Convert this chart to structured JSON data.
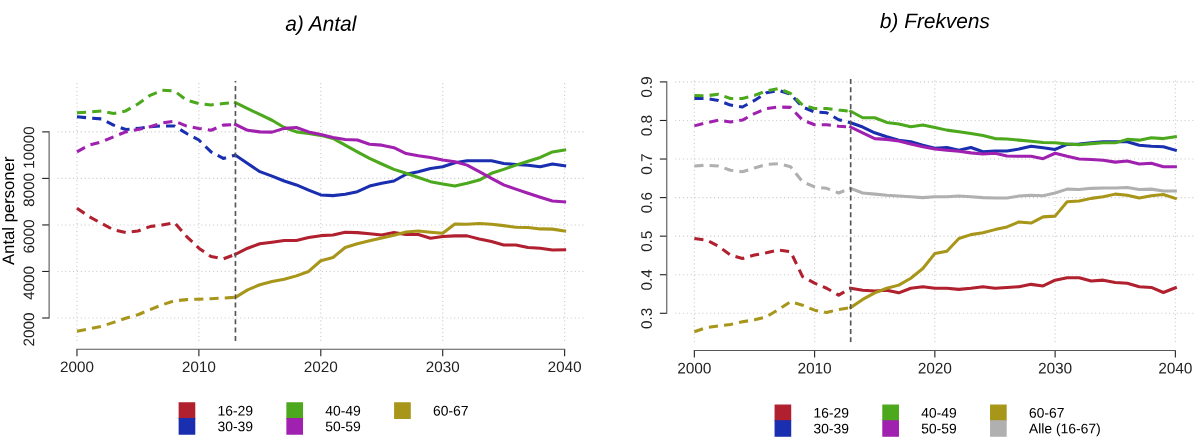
{
  "chart_data": [
    {
      "type": "line",
      "title": "a) Antal",
      "ylabel": "Antal personer",
      "xlim": [
        1998.4,
        2041.6
      ],
      "ylim": [
        1016,
        12200
      ],
      "xticks": [
        2000,
        2010,
        2020,
        2030,
        2040
      ],
      "yticks": [
        2000,
        4000,
        6000,
        8000,
        10000
      ],
      "grid": true,
      "legend": "bottom",
      "marker": "none",
      "ref_lines": [
        {
          "axis": "x",
          "value": 2013,
          "color": "#555555",
          "line_style": "dashed"
        }
      ],
      "series": [
        {
          "color": "#b0202e",
          "line_style": "dashed",
          "x": [
            2000,
            2001,
            2002,
            2003,
            2004,
            2005,
            2006,
            2007,
            2008,
            2009,
            2010,
            2011,
            2012,
            2013
          ],
          "values": [
            6720,
            6360,
            6070,
            5790,
            5670,
            5740,
            5930,
            6000,
            6100,
            5500,
            5000,
            4640,
            4540,
            4740
          ]
        },
        {
          "name": "16-29",
          "color": "#b0202e",
          "line_style": "solid",
          "x": [
            2013,
            2014,
            2015,
            2016,
            2017,
            2018,
            2019,
            2020,
            2021,
            2022,
            2023,
            2024,
            2025,
            2026,
            2027,
            2028,
            2029,
            2030,
            2031,
            2032,
            2033,
            2034,
            2035,
            2036,
            2037,
            2038,
            2039,
            2040
          ],
          "values": [
            4740,
            5000,
            5190,
            5260,
            5330,
            5330,
            5460,
            5540,
            5570,
            5690,
            5670,
            5620,
            5570,
            5670,
            5590,
            5590,
            5430,
            5500,
            5530,
            5530,
            5400,
            5290,
            5140,
            5140,
            5030,
            5000,
            4920,
            4930
          ]
        },
        {
          "color": "#1a2fb0",
          "line_style": "dashed",
          "x": [
            2000,
            2001,
            2002,
            2003,
            2004,
            2005,
            2006,
            2007,
            2008,
            2009,
            2010,
            2011,
            2012,
            2013
          ],
          "values": [
            10650,
            10600,
            10560,
            10290,
            10100,
            10150,
            10220,
            10260,
            10250,
            9930,
            9650,
            9140,
            8860,
            9000
          ]
        },
        {
          "name": "30-39",
          "color": "#1a2fb0",
          "line_style": "solid",
          "x": [
            2013,
            2014,
            2015,
            2016,
            2017,
            2018,
            2019,
            2020,
            2021,
            2022,
            2023,
            2024,
            2025,
            2026,
            2027,
            2028,
            2029,
            2030,
            2031,
            2032,
            2033,
            2034,
            2035,
            2036,
            2037,
            2038,
            2039,
            2040
          ],
          "values": [
            9000,
            8640,
            8290,
            8100,
            7890,
            7720,
            7500,
            7290,
            7260,
            7320,
            7430,
            7670,
            7790,
            7890,
            8180,
            8290,
            8430,
            8500,
            8670,
            8760,
            8760,
            8760,
            8640,
            8600,
            8570,
            8500,
            8620,
            8540
          ]
        },
        {
          "color": "#4ca81c",
          "line_style": "dashed",
          "x": [
            2000,
            2001,
            2002,
            2003,
            2004,
            2005,
            2006,
            2007,
            2008,
            2009,
            2010,
            2011,
            2012,
            2013
          ],
          "values": [
            10820,
            10850,
            10900,
            10790,
            10900,
            11200,
            11570,
            11790,
            11760,
            11360,
            11220,
            11160,
            11220,
            11260
          ]
        },
        {
          "name": "40-49",
          "color": "#4ca81c",
          "line_style": "solid",
          "x": [
            2013,
            2014,
            2015,
            2016,
            2017,
            2018,
            2019,
            2020,
            2021,
            2022,
            2023,
            2024,
            2025,
            2026,
            2027,
            2028,
            2029,
            2030,
            2031,
            2032,
            2033,
            2034,
            2035,
            2036,
            2037,
            2038,
            2039,
            2040
          ],
          "values": [
            11260,
            11000,
            10750,
            10500,
            10190,
            10000,
            9930,
            9850,
            9720,
            9430,
            9140,
            8860,
            8620,
            8390,
            8220,
            8040,
            7860,
            7760,
            7670,
            7790,
            7930,
            8220,
            8390,
            8570,
            8740,
            8900,
            9140,
            9220
          ]
        },
        {
          "color": "#a020b0",
          "line_style": "dashed",
          "x": [
            2000,
            2001,
            2002,
            2003,
            2004,
            2005,
            2006,
            2007,
            2008,
            2009,
            2010,
            2011,
            2012,
            2013
          ],
          "values": [
            9140,
            9430,
            9570,
            9790,
            10000,
            10100,
            10220,
            10390,
            10460,
            10250,
            10150,
            10070,
            10290,
            10320
          ]
        },
        {
          "name": "50-59",
          "color": "#a020b0",
          "line_style": "solid",
          "x": [
            2013,
            2014,
            2015,
            2016,
            2017,
            2018,
            2019,
            2020,
            2021,
            2022,
            2023,
            2024,
            2025,
            2026,
            2027,
            2028,
            2029,
            2030,
            2031,
            2032,
            2033,
            2034,
            2035,
            2036,
            2037,
            2038,
            2039,
            2040
          ],
          "values": [
            10320,
            10070,
            10000,
            9990,
            10150,
            10190,
            10000,
            9890,
            9760,
            9670,
            9650,
            9470,
            9430,
            9320,
            9070,
            8970,
            8900,
            8790,
            8720,
            8570,
            8290,
            8000,
            7720,
            7540,
            7360,
            7190,
            7030,
            6990
          ]
        },
        {
          "color": "#a8961a",
          "line_style": "dashed",
          "x": [
            2000,
            2001,
            2002,
            2003,
            2004,
            2005,
            2006,
            2007,
            2008,
            2009,
            2010,
            2011,
            2012,
            2013
          ],
          "values": [
            1430,
            1530,
            1640,
            1810,
            1990,
            2140,
            2360,
            2570,
            2740,
            2790,
            2810,
            2830,
            2860,
            2890
          ]
        },
        {
          "name": "60-67",
          "color": "#a8961a",
          "line_style": "solid",
          "x": [
            2013,
            2014,
            2015,
            2016,
            2017,
            2018,
            2019,
            2020,
            2021,
            2022,
            2023,
            2024,
            2025,
            2026,
            2027,
            2028,
            2029,
            2030,
            2031,
            2032,
            2033,
            2034,
            2035,
            2036,
            2037,
            2038,
            2039,
            2040
          ],
          "values": [
            2890,
            3210,
            3430,
            3570,
            3670,
            3810,
            4000,
            4460,
            4600,
            5030,
            5190,
            5320,
            5440,
            5560,
            5700,
            5740,
            5690,
            5640,
            6040,
            6030,
            6060,
            6030,
            5970,
            5900,
            5890,
            5830,
            5820,
            5740
          ]
        }
      ]
    },
    {
      "type": "line",
      "title": "b) Frekvens",
      "xlim": [
        1998.4,
        2041.6
      ],
      "ylim": [
        0.225,
        0.91
      ],
      "xticks": [
        2000,
        2010,
        2020,
        2030,
        2040
      ],
      "yticks": [
        0.3,
        0.4,
        0.5,
        0.6,
        0.7,
        0.8,
        0.9
      ],
      "grid": true,
      "legend": "bottom",
      "marker": "none",
      "ref_lines": [
        {
          "axis": "x",
          "value": 2013,
          "color": "#555555",
          "line_style": "dashed"
        }
      ],
      "series": [
        {
          "color": "#b0202e",
          "line_style": "dashed",
          "x": [
            2000,
            2001,
            2002,
            2003,
            2004,
            2005,
            2006,
            2007,
            2008,
            2009,
            2010,
            2011,
            2012,
            2013
          ],
          "values": [
            0.494,
            0.49,
            0.474,
            0.451,
            0.442,
            0.451,
            0.457,
            0.464,
            0.46,
            0.395,
            0.378,
            0.365,
            0.347,
            0.365
          ]
        },
        {
          "name": "16-29",
          "color": "#b0202e",
          "line_style": "solid",
          "x": [
            2013,
            2014,
            2015,
            2016,
            2017,
            2018,
            2019,
            2020,
            2021,
            2022,
            2023,
            2024,
            2025,
            2026,
            2027,
            2028,
            2029,
            2030,
            2031,
            2032,
            2033,
            2034,
            2035,
            2036,
            2037,
            2038,
            2039,
            2040
          ],
          "values": [
            0.365,
            0.36,
            0.358,
            0.36,
            0.353,
            0.365,
            0.369,
            0.365,
            0.365,
            0.362,
            0.365,
            0.369,
            0.365,
            0.367,
            0.369,
            0.375,
            0.371,
            0.386,
            0.392,
            0.392,
            0.384,
            0.386,
            0.38,
            0.378,
            0.369,
            0.367,
            0.354,
            0.366
          ]
        },
        {
          "color": "#1a2fb0",
          "line_style": "dashed",
          "x": [
            2000,
            2001,
            2002,
            2003,
            2004,
            2005,
            2006,
            2007,
            2008,
            2009,
            2010,
            2011,
            2012,
            2013
          ],
          "values": [
            0.857,
            0.857,
            0.852,
            0.84,
            0.835,
            0.852,
            0.872,
            0.878,
            0.868,
            0.835,
            0.822,
            0.82,
            0.802,
            0.794
          ]
        },
        {
          "name": "30-39",
          "color": "#1a2fb0",
          "line_style": "solid",
          "x": [
            2013,
            2014,
            2015,
            2016,
            2017,
            2018,
            2019,
            2020,
            2021,
            2022,
            2023,
            2024,
            2025,
            2026,
            2027,
            2028,
            2029,
            2030,
            2031,
            2032,
            2033,
            2034,
            2035,
            2036,
            2037,
            2038,
            2039,
            2040
          ],
          "values": [
            0.794,
            0.783,
            0.768,
            0.758,
            0.749,
            0.745,
            0.736,
            0.728,
            0.73,
            0.723,
            0.73,
            0.719,
            0.721,
            0.721,
            0.726,
            0.733,
            0.729,
            0.725,
            0.738,
            0.739,
            0.742,
            0.745,
            0.745,
            0.745,
            0.736,
            0.733,
            0.732,
            0.723
          ]
        },
        {
          "color": "#4ca81c",
          "line_style": "dashed",
          "x": [
            2000,
            2001,
            2002,
            2003,
            2004,
            2005,
            2006,
            2007,
            2008,
            2009,
            2010,
            2011,
            2012,
            2013
          ],
          "values": [
            0.865,
            0.864,
            0.868,
            0.857,
            0.857,
            0.865,
            0.877,
            0.883,
            0.87,
            0.84,
            0.831,
            0.831,
            0.827,
            0.824
          ]
        },
        {
          "name": "40-49",
          "color": "#4ca81c",
          "line_style": "solid",
          "x": [
            2013,
            2014,
            2015,
            2016,
            2017,
            2018,
            2019,
            2020,
            2021,
            2022,
            2023,
            2024,
            2025,
            2026,
            2027,
            2028,
            2029,
            2030,
            2031,
            2032,
            2033,
            2034,
            2035,
            2036,
            2037,
            2038,
            2039,
            2040
          ],
          "values": [
            0.824,
            0.807,
            0.807,
            0.795,
            0.791,
            0.784,
            0.788,
            0.782,
            0.775,
            0.771,
            0.766,
            0.761,
            0.753,
            0.752,
            0.749,
            0.746,
            0.743,
            0.742,
            0.739,
            0.737,
            0.74,
            0.742,
            0.742,
            0.751,
            0.749,
            0.755,
            0.753,
            0.758
          ]
        },
        {
          "color": "#a020b0",
          "line_style": "dashed",
          "x": [
            2000,
            2001,
            2002,
            2003,
            2004,
            2005,
            2006,
            2007,
            2008,
            2009,
            2010,
            2011,
            2012,
            2013
          ],
          "values": [
            0.786,
            0.794,
            0.801,
            0.796,
            0.801,
            0.818,
            0.831,
            0.835,
            0.834,
            0.801,
            0.789,
            0.789,
            0.785,
            0.783
          ]
        },
        {
          "name": "50-59",
          "color": "#a020b0",
          "line_style": "solid",
          "x": [
            2013,
            2014,
            2015,
            2016,
            2017,
            2018,
            2019,
            2020,
            2021,
            2022,
            2023,
            2024,
            2025,
            2026,
            2027,
            2028,
            2029,
            2030,
            2031,
            2032,
            2033,
            2034,
            2035,
            2036,
            2037,
            2038,
            2039,
            2040
          ],
          "values": [
            0.783,
            0.768,
            0.753,
            0.751,
            0.747,
            0.739,
            0.732,
            0.726,
            0.723,
            0.72,
            0.716,
            0.713,
            0.715,
            0.708,
            0.707,
            0.707,
            0.701,
            0.715,
            0.707,
            0.7,
            0.699,
            0.697,
            0.692,
            0.695,
            0.687,
            0.689,
            0.68,
            0.68
          ]
        },
        {
          "color": "#a8961a",
          "line_style": "dashed",
          "x": [
            2000,
            2001,
            2002,
            2003,
            2004,
            2005,
            2006,
            2007,
            2008,
            2009,
            2010,
            2011,
            2012,
            2013
          ],
          "values": [
            0.252,
            0.263,
            0.267,
            0.271,
            0.278,
            0.283,
            0.291,
            0.31,
            0.33,
            0.321,
            0.308,
            0.302,
            0.31,
            0.315
          ]
        },
        {
          "name": "60-67",
          "color": "#a8961a",
          "line_style": "solid",
          "x": [
            2013,
            2014,
            2015,
            2016,
            2017,
            2018,
            2019,
            2020,
            2021,
            2022,
            2023,
            2024,
            2025,
            2026,
            2027,
            2028,
            2029,
            2030,
            2031,
            2032,
            2033,
            2034,
            2035,
            2036,
            2037,
            2038,
            2039,
            2040
          ],
          "values": [
            0.315,
            0.336,
            0.353,
            0.365,
            0.373,
            0.391,
            0.416,
            0.455,
            0.461,
            0.494,
            0.504,
            0.509,
            0.517,
            0.524,
            0.537,
            0.534,
            0.55,
            0.552,
            0.589,
            0.591,
            0.598,
            0.602,
            0.609,
            0.606,
            0.599,
            0.605,
            0.608,
            0.598
          ]
        },
        {
          "color": "#b0b0b0",
          "line_style": "dashed",
          "x": [
            2000,
            2001,
            2002,
            2003,
            2004,
            2005,
            2006,
            2007,
            2008,
            2009,
            2010,
            2011,
            2012,
            2013
          ],
          "values": [
            0.682,
            0.684,
            0.682,
            0.671,
            0.667,
            0.677,
            0.686,
            0.688,
            0.68,
            0.641,
            0.628,
            0.624,
            0.612,
            0.624
          ]
        },
        {
          "name": "Alle (16-67)",
          "color": "#b0b0b0",
          "line_style": "solid",
          "x": [
            2013,
            2014,
            2015,
            2016,
            2017,
            2018,
            2019,
            2020,
            2021,
            2022,
            2023,
            2024,
            2025,
            2026,
            2027,
            2028,
            2029,
            2030,
            2031,
            2032,
            2033,
            2034,
            2035,
            2036,
            2037,
            2038,
            2039,
            2040
          ],
          "values": [
            0.624,
            0.612,
            0.609,
            0.606,
            0.604,
            0.602,
            0.6,
            0.602,
            0.602,
            0.604,
            0.602,
            0.6,
            0.599,
            0.599,
            0.604,
            0.606,
            0.605,
            0.612,
            0.622,
            0.621,
            0.624,
            0.625,
            0.625,
            0.626,
            0.621,
            0.622,
            0.617,
            0.617
          ]
        }
      ]
    }
  ]
}
